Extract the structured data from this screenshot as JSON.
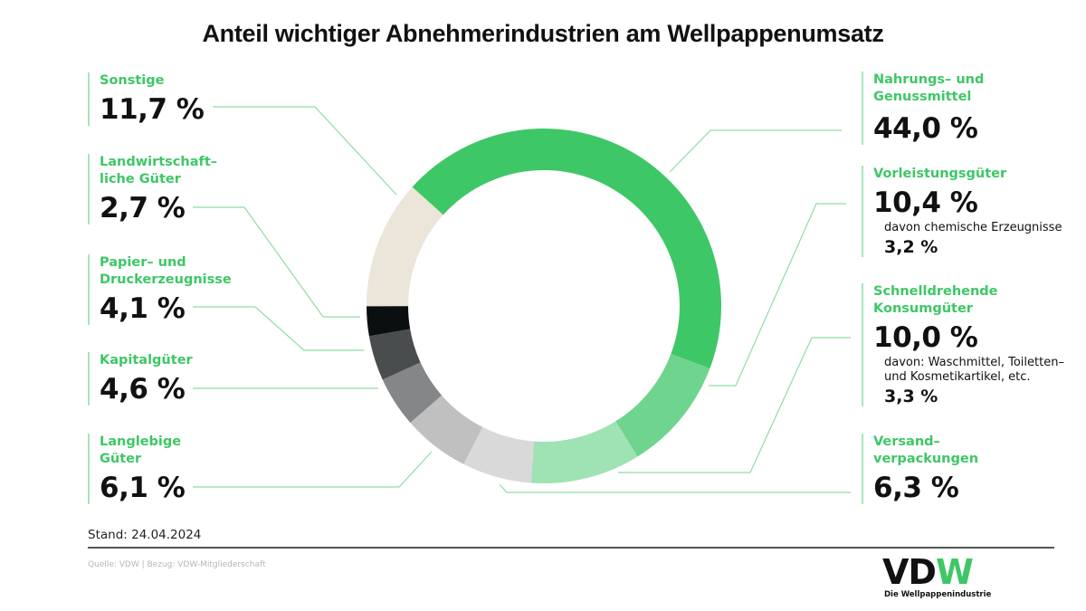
{
  "title": "Anteil wichtiger Abnehmerindustrien am Wellpappenumsatz",
  "chart_data": {
    "type": "pie",
    "subtype": "donut",
    "title": "Anteil wichtiger Abnehmerindustrien am Wellpappenumsatz",
    "unit": "%",
    "start_angle_deg": 312.1,
    "direction": "clockwise",
    "categories": [
      "Nahrungs- und Genussmittel",
      "Vorleistungsgüter",
      "Schnelldrehende Konsumgüter",
      "Versandverpackungen",
      "Langlebige Güter",
      "Kapitalgüter",
      "Papier- und Druckerzeugnisse",
      "Landwirtschaftliche Güter",
      "Sonstige"
    ],
    "values": [
      44.0,
      10.4,
      10.0,
      6.3,
      6.1,
      4.6,
      4.1,
      2.7,
      11.7
    ],
    "colors": [
      "#3ec766",
      "#6fd48e",
      "#9fe2b3",
      "#d9d9d9",
      "#c0c0c0",
      "#858687",
      "#4a4d4e",
      "#0c0f10",
      "#ebe5da"
    ],
    "sub_values": [
      {
        "parent": "Vorleistungsgüter",
        "label": "davon chemische Erzeugnisse",
        "value": 3.2
      },
      {
        "parent": "Schnelldrehende Konsumgüter",
        "label": "davon: Waschmittel, Toiletten- und Kosmetikartikel, etc.",
        "value": 3.3
      }
    ]
  },
  "labels": {
    "left": [
      {
        "name": "Sonstige",
        "label": "Sonstige",
        "value": "11,7 %"
      },
      {
        "name": "Landwirtschaftliche Güter",
        "label": "Landwirtschaft–\nliche Güter",
        "value": "2,7 %"
      },
      {
        "name": "Papier- und Druckerzeugnisse",
        "label": "Papier– und\nDruckerzeugnisse",
        "value": "4,1 %"
      },
      {
        "name": "Kapitalgüter",
        "label": "Kapitalgüter",
        "value": "4,6 %"
      },
      {
        "name": "Langlebige Güter",
        "label": "Langlebige\nGüter",
        "value": "6,1 %"
      }
    ],
    "right": [
      {
        "name": "Nahrungs- und Genussmittel",
        "label": "Nahrungs– und\nGenussmittel",
        "value": "44,0 %"
      },
      {
        "name": "Vorleistungsgüter",
        "label": "Vorleistungsgüter",
        "value": "10,4 %",
        "sub_label": "davon chemische Erzeugnisse",
        "sub_value": "3,2 %"
      },
      {
        "name": "Schnelldrehende Konsumgüter",
        "label": "Schnelldrehende\nKonsumgüter",
        "value": "10,0 %",
        "sub_label": "davon: Waschmittel, Toiletten–\nund Kosmetikartikel, etc.",
        "sub_value": "3,3 %"
      },
      {
        "name": "Versandverpackungen",
        "label": "Versand–\nverpackungen",
        "value": "6,3 %"
      }
    ]
  },
  "footer": {
    "stand": "Stand: 24.04.2024",
    "source": "Quelle: VDW | Bezug: VDW-Mitgliederschaft",
    "logo_vd": "VD",
    "logo_w": "W",
    "logo_tagline": "Die Wellpappenindustrie"
  }
}
